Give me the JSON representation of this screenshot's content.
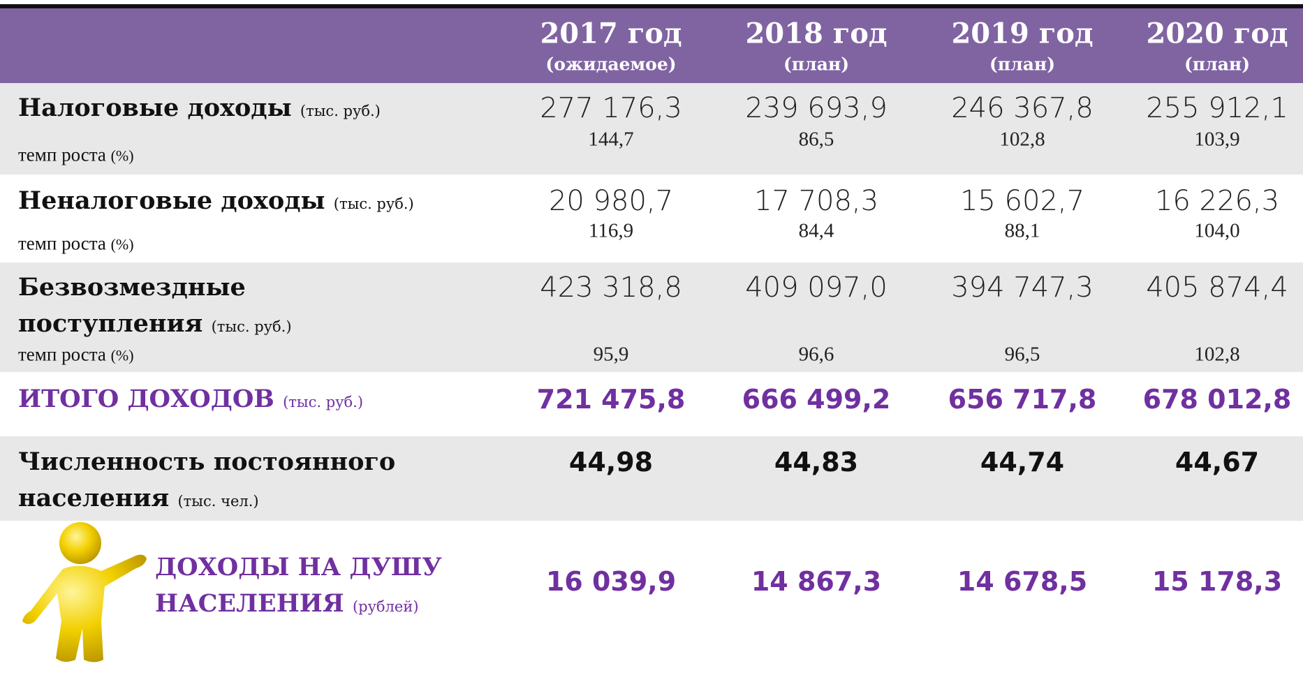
{
  "header": {
    "columns": [
      {
        "year": "2017 год",
        "note": "(ожидаемое)"
      },
      {
        "year": "2018 год",
        "note": "(план)"
      },
      {
        "year": "2019 год",
        "note": "(план)"
      },
      {
        "year": "2020 год",
        "note": "(план)"
      }
    ]
  },
  "rows": [
    {
      "label": "Налоговые доходы",
      "unit": "(тыс. руб.)",
      "sub_label": "темп роста",
      "sub_unit": "(%)",
      "values": [
        "277 176,3",
        "239 693,9",
        "246 367,8",
        "255 912,1"
      ],
      "growth": [
        "144,7",
        "86,5",
        "102,8",
        "103,9"
      ]
    },
    {
      "label": "Неналоговые доходы",
      "unit": "(тыс. руб.)",
      "sub_label": "темп роста",
      "sub_unit": "(%)",
      "values": [
        "20 980,7",
        "17 708,3",
        "15 602,7",
        "16 226,3"
      ],
      "growth": [
        "116,9",
        "84,4",
        "88,1",
        "104,0"
      ]
    },
    {
      "label": "Безвозмездные поступления",
      "unit": "(тыс. руб.)",
      "sub_label": "темп роста",
      "sub_unit": "(%)",
      "values": [
        "423 318,8",
        "409 097,0",
        "394 747,3",
        "405 874,4"
      ],
      "growth": [
        "95,9",
        "96,6",
        "96,5",
        "102,8"
      ]
    },
    {
      "label": "ИТОГО ДОХОДОВ",
      "unit": "(тыс. руб.)",
      "values": [
        "721 475,8",
        "666 499,2",
        "656 717,8",
        "678 012,8"
      ]
    },
    {
      "label": "Численность постоянного населения",
      "unit": "(тыс. чел.)",
      "values": [
        "44,98",
        "44,83",
        "44,74",
        "44,67"
      ]
    },
    {
      "label": "ДОХОДЫ НА ДУШУ НАСЕЛЕНИЯ",
      "unit": "(рублей)",
      "values": [
        "16 039,9",
        "14 867,3",
        "14 678,5",
        "15 178,3"
      ]
    }
  ]
}
